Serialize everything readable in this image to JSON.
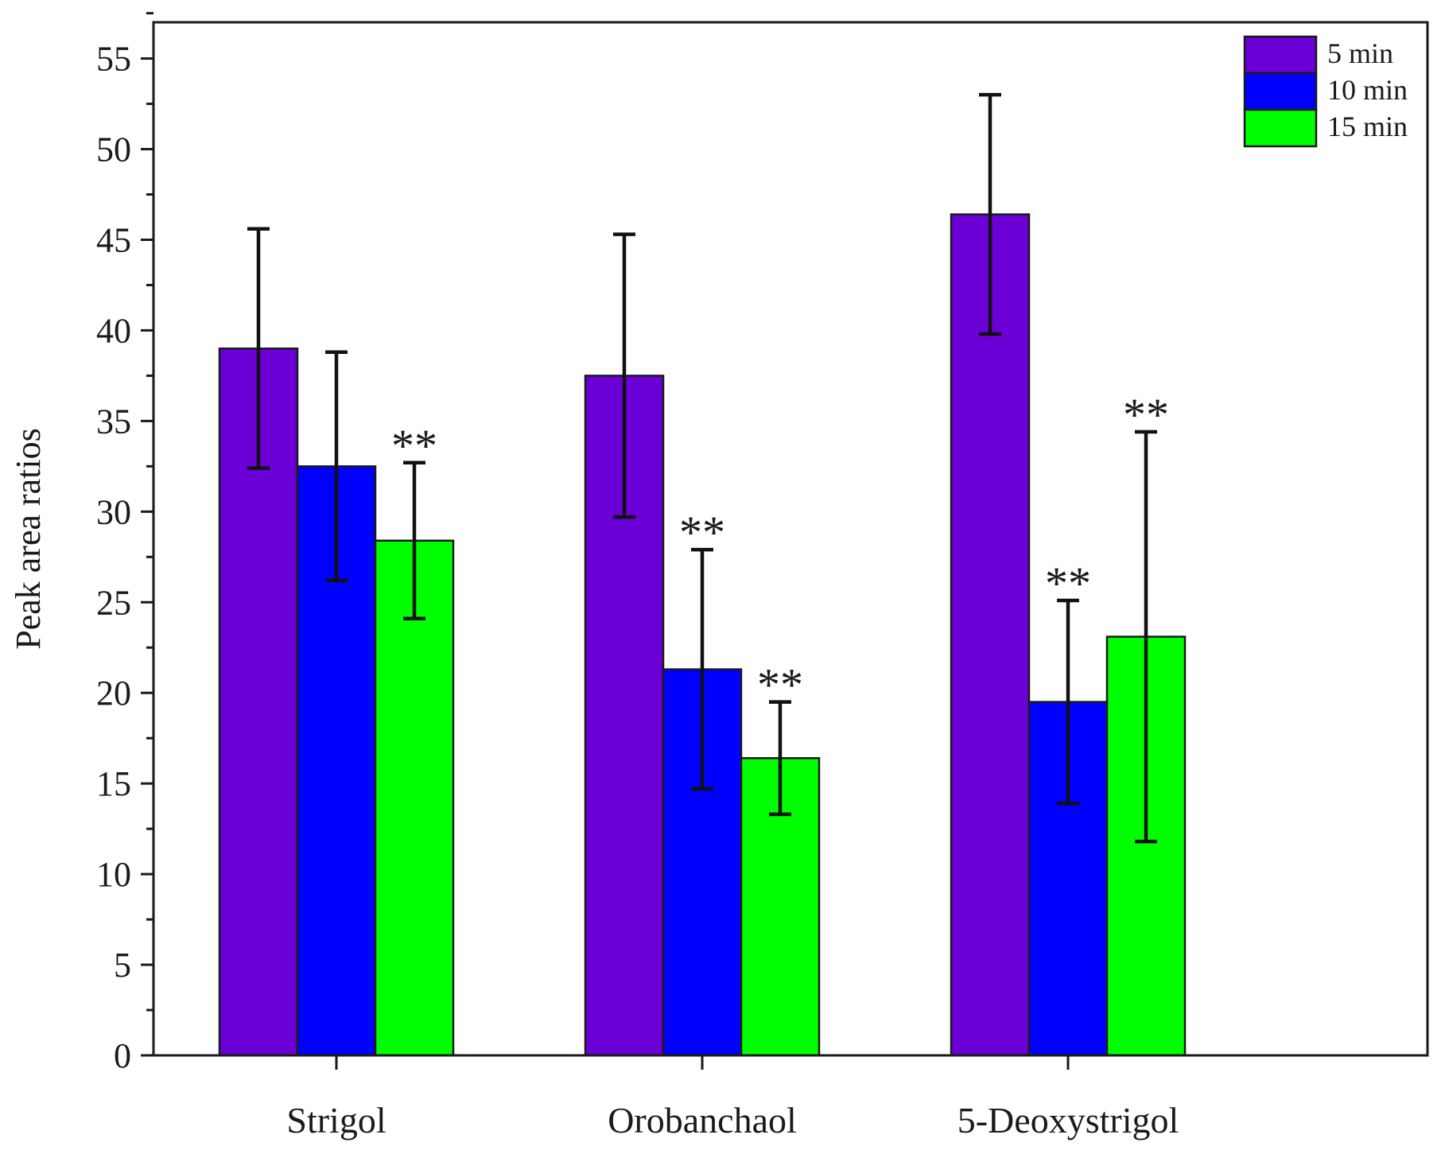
{
  "chart_data": {
    "type": "bar",
    "title": "",
    "xlabel": "",
    "ylabel": "Peak area ratios",
    "ylim": [
      0,
      57
    ],
    "yticks": [
      0,
      5,
      10,
      15,
      20,
      25,
      30,
      35,
      40,
      45,
      50,
      55
    ],
    "ytick_labels": [
      "0",
      "5",
      "10",
      "15",
      "20",
      "25",
      "30",
      "35",
      "40",
      "45",
      "50",
      "55"
    ],
    "categories": [
      "Strigol",
      "Orobanchaol",
      "5-Deoxystrigol"
    ],
    "series": [
      {
        "name": "5 min",
        "color": "#6a00d6",
        "values": [
          39.0,
          37.5,
          46.4
        ],
        "errors": [
          6.6,
          7.8,
          6.6
        ],
        "significance": [
          "",
          "",
          ""
        ]
      },
      {
        "name": "10 min",
        "color": "#0000ff",
        "values": [
          32.5,
          21.3,
          19.5
        ],
        "errors": [
          6.3,
          6.6,
          5.6
        ],
        "significance": [
          "",
          "**",
          "**"
        ]
      },
      {
        "name": "15 min",
        "color": "#00ff00",
        "values": [
          28.4,
          16.4,
          23.1
        ],
        "errors": [
          4.3,
          3.1,
          11.3
        ],
        "significance": [
          "**",
          "**",
          "**"
        ]
      }
    ],
    "legend_position": "top-right",
    "grid": false
  }
}
